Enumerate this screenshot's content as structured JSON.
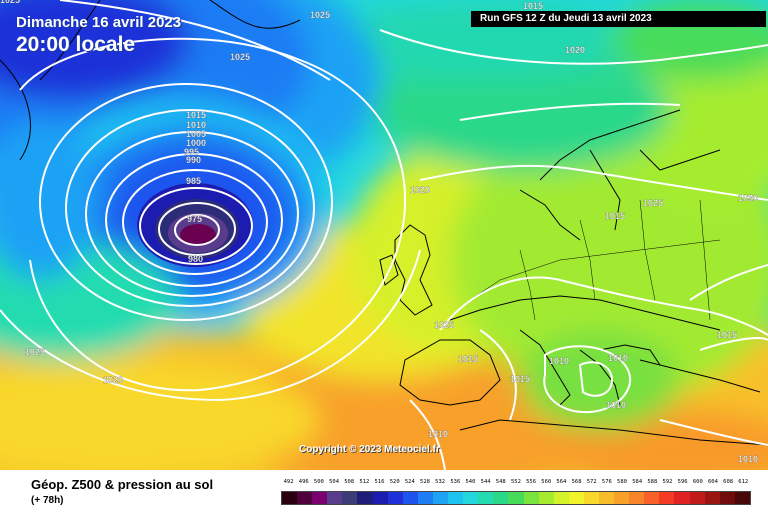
{
  "header": {
    "date": "Dimanche 16 avril 2023",
    "time": "20:00 locale",
    "run": "Run GFS 12 Z du Jeudi 13 avril 2023",
    "copyright": "Copyright © 2023 Meteociel.fr"
  },
  "footer": {
    "product": "Géop. Z500 & pression au sol",
    "lead": "(+ 78h)"
  },
  "legend": {
    "labels": [
      "492",
      "496",
      "500",
      "504",
      "508",
      "512",
      "516",
      "520",
      "524",
      "528",
      "532",
      "536",
      "540",
      "544",
      "548",
      "552",
      "556",
      "560",
      "564",
      "568",
      "572",
      "576",
      "580",
      "584",
      "588",
      "592",
      "596",
      "600",
      "604",
      "608",
      "612"
    ],
    "colors": [
      "#2a0010",
      "#50003a",
      "#7a0070",
      "#5a3c8c",
      "#3c3c78",
      "#1e1e7a",
      "#1c1cb0",
      "#1e30d8",
      "#1e54ee",
      "#1e7cf4",
      "#1ea2f4",
      "#1ec4f0",
      "#22d8dc",
      "#22dcb0",
      "#2ad88a",
      "#46dc5a",
      "#78e43c",
      "#a6ec2e",
      "#d2f22a",
      "#f2f22a",
      "#f8d82a",
      "#f8bc2a",
      "#f8a02a",
      "#f8842a",
      "#f8622a",
      "#f43a22",
      "#e02222",
      "#c01a1a",
      "#9a1414",
      "#700c0c",
      "#480808"
    ]
  },
  "isobar_labels": [
    "1025",
    "1025",
    "1025",
    "1020",
    "1015",
    "1010",
    "1005",
    "1000",
    "995",
    "990",
    "985",
    "975",
    "980",
    "1020",
    "1025",
    "1025",
    "1020",
    "1015",
    "1025",
    "1030",
    "1015",
    "1010",
    "1010",
    "1015",
    "1015",
    "1015",
    "1010",
    "1010",
    "1010"
  ],
  "colors": {
    "isobar": "#ffffff",
    "coast": "#000000",
    "header_text": "#ffffff"
  }
}
